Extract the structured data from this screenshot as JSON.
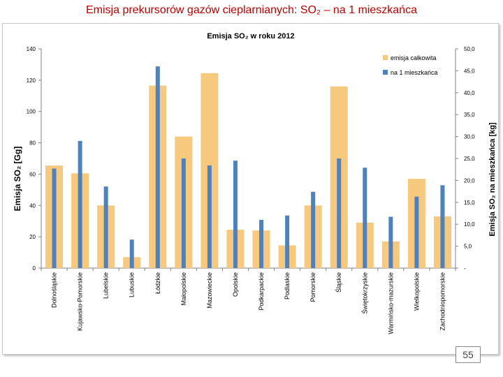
{
  "slide_title": "Emisja prekursorów gazów cieplarnianych:  SO₂ – na 1 mieszkańca",
  "page_number": "55",
  "colors": {
    "total": "#f7c97e",
    "per_capita": "#4f81bd",
    "title": "#c00000"
  },
  "chart_data": {
    "type": "bar",
    "title": "Emisja SO₂ w roku 2012",
    "ylabel": "Emisja SO₂ [Gg]",
    "ylabel_right": "Emisja SO₂ na mieszkańca [kg]",
    "ylim": [
      0,
      140
    ],
    "ylim_right": [
      0,
      50
    ],
    "yticks": [
      "0",
      "20",
      "40",
      "60",
      "80",
      "100",
      "120",
      "140"
    ],
    "yticks_right": [
      "-",
      "5,0",
      "10,0",
      "15,0",
      "20,0",
      "25,0",
      "30,0",
      "35,0",
      "40,0",
      "45,0",
      "50,0"
    ],
    "legend_position": "top-right",
    "categories": [
      "Dolnośląskie",
      "Kujawsko-Pomorskie",
      "Lubelskie",
      "Lubuskie",
      "Łódzkie",
      "Małopolskie",
      "Mazowieckie",
      "Opolskie",
      "Podkarpackie",
      "Podlaskie",
      "Pomorskie",
      "Śląskie",
      "Świętokrzyskie",
      "Warmińsko-mazurskie",
      "Wielkopolskie",
      "Zachodniopomorskie"
    ],
    "series": [
      {
        "name": "emisja całkowita",
        "axis": "left",
        "values": [
          65.5,
          60.5,
          40,
          7,
          116.5,
          84,
          124.5,
          24.5,
          24,
          14.5,
          40,
          116,
          29,
          17,
          57,
          33
        ]
      },
      {
        "name": "na 1 mieszkańca",
        "axis": "right",
        "values": [
          22.7,
          29.0,
          18.6,
          6.5,
          46.0,
          25.0,
          23.4,
          24.5,
          11.0,
          12.0,
          17.4,
          25.0,
          22.9,
          11.7,
          16.3,
          18.9
        ]
      }
    ]
  }
}
